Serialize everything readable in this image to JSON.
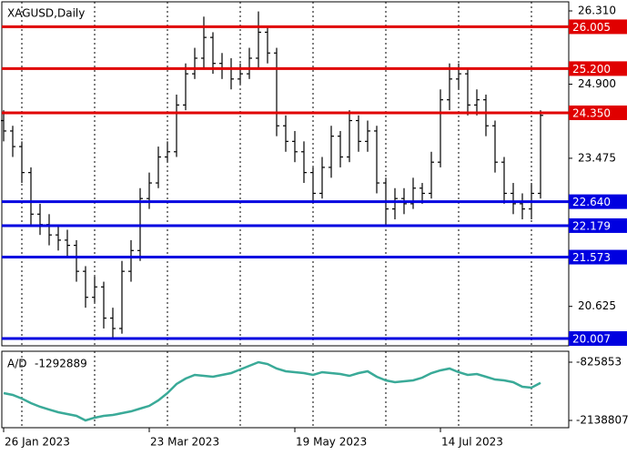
{
  "chart_data": {
    "type": "ohlc",
    "title": "XAGUSD,Daily",
    "bar_color": "#000000",
    "grid": true,
    "categories": [
      "26 Jan 2023",
      null,
      null,
      null,
      null,
      null,
      null,
      null,
      null,
      null,
      null,
      null,
      null,
      null,
      null,
      null,
      "23 Mar 2023",
      null,
      null,
      null,
      null,
      null,
      null,
      null,
      null,
      null,
      null,
      null,
      null,
      null,
      null,
      null,
      "19 May 2023",
      null,
      null,
      null,
      null,
      null,
      null,
      null,
      null,
      null,
      null,
      null,
      null,
      null,
      null,
      null,
      "14 Jul 2023",
      null,
      null,
      null,
      null,
      null,
      null,
      null,
      null,
      null,
      null,
      null
    ],
    "open": [
      24.2,
      24.0,
      23.7,
      23.2,
      22.4,
      22.2,
      22.0,
      21.9,
      21.8,
      21.3,
      20.8,
      21.0,
      20.4,
      20.2,
      21.3,
      21.7,
      22.7,
      23.0,
      23.5,
      23.6,
      24.5,
      25.1,
      25.4,
      25.8,
      25.3,
      25.2,
      25.0,
      25.1,
      25.4,
      25.9,
      25.5,
      24.1,
      23.8,
      23.6,
      23.2,
      22.8,
      23.3,
      23.9,
      23.5,
      24.2,
      23.8,
      24.0,
      23.0,
      22.5,
      22.7,
      22.6,
      22.9,
      22.8,
      23.4,
      24.6,
      25.0,
      25.1,
      24.5,
      24.6,
      24.1,
      23.4,
      22.8,
      22.6,
      22.5,
      22.8
    ],
    "high": [
      24.4,
      24.1,
      23.8,
      23.3,
      22.6,
      22.4,
      22.2,
      22.1,
      21.9,
      21.4,
      21.2,
      21.1,
      20.6,
      21.5,
      21.9,
      22.9,
      23.2,
      23.7,
      23.8,
      24.7,
      25.3,
      25.6,
      26.2,
      25.9,
      25.5,
      25.4,
      25.3,
      25.6,
      26.3,
      26.0,
      25.6,
      24.3,
      24.0,
      23.8,
      23.3,
      23.5,
      24.1,
      24.0,
      24.4,
      24.3,
      24.2,
      24.1,
      23.1,
      22.9,
      22.9,
      23.1,
      23.0,
      23.6,
      24.8,
      25.3,
      25.3,
      25.2,
      24.8,
      24.7,
      24.2,
      23.5,
      23.0,
      22.8,
      23.0,
      24.4
    ],
    "low": [
      23.8,
      23.5,
      23.0,
      22.2,
      22.0,
      21.8,
      21.7,
      21.6,
      21.1,
      20.6,
      20.7,
      20.2,
      20.0,
      20.1,
      21.1,
      21.5,
      22.5,
      22.9,
      23.4,
      23.5,
      24.4,
      25.0,
      25.2,
      25.1,
      25.0,
      24.8,
      24.9,
      25.0,
      25.2,
      25.3,
      23.9,
      23.6,
      23.4,
      23.0,
      22.6,
      22.7,
      23.1,
      23.3,
      23.4,
      23.6,
      23.6,
      22.8,
      22.2,
      22.3,
      22.4,
      22.5,
      22.6,
      22.7,
      23.3,
      24.4,
      24.8,
      24.3,
      24.3,
      23.9,
      23.2,
      22.6,
      22.4,
      22.3,
      22.3,
      22.7
    ],
    "close": [
      24.0,
      23.7,
      23.2,
      22.4,
      22.2,
      22.0,
      21.9,
      21.8,
      21.3,
      20.8,
      21.0,
      20.4,
      20.2,
      21.3,
      21.7,
      22.7,
      23.0,
      23.5,
      23.6,
      24.5,
      25.1,
      25.4,
      25.8,
      25.3,
      25.2,
      25.0,
      25.1,
      25.4,
      25.9,
      25.5,
      24.1,
      23.8,
      23.6,
      23.2,
      22.8,
      23.3,
      23.9,
      23.5,
      24.2,
      23.8,
      24.0,
      23.0,
      22.5,
      22.7,
      22.6,
      22.9,
      22.8,
      23.4,
      24.6,
      25.0,
      25.1,
      24.5,
      24.6,
      24.1,
      23.4,
      22.8,
      22.6,
      22.5,
      22.8,
      24.3
    ],
    "ylim": [
      19.867,
      26.485
    ],
    "yticks": [
      {
        "value": 26.31,
        "label": "26.310"
      },
      {
        "value": 24.9,
        "label": "24.900"
      },
      23.475,
      20.625
    ],
    "levels": [
      {
        "value": 26.005,
        "color": "#e00000"
      },
      {
        "value": 25.2,
        "label": "25.200",
        "color": "#e00000"
      },
      {
        "value": 24.35,
        "label": "24.350",
        "color": "#e00000"
      },
      {
        "value": 22.64,
        "label": "22.640",
        "color": "#0000e0"
      },
      {
        "value": 22.179,
        "color": "#0000e0"
      },
      {
        "value": 21.573,
        "color": "#0000e0"
      },
      {
        "value": 20.007,
        "color": "#0000e0"
      }
    ],
    "indicator": {
      "name": "A/D",
      "color": "#3aaa98",
      "values": [
        -1523000,
        -1564000,
        -1646000,
        -1749000,
        -1831000,
        -1893000,
        -1954000,
        -1995000,
        -2036000,
        -2138807,
        -2077000,
        -2036000,
        -2016000,
        -1975000,
        -1934000,
        -1872000,
        -1811000,
        -1687000,
        -1523000,
        -1318000,
        -1195000,
        -1113000,
        -1134000,
        -1154000,
        -1113000,
        -1072000,
        -990000,
        -908000,
        -825853,
        -867000,
        -969000,
        -1031000,
        -1051000,
        -1072000,
        -1113000,
        -1051000,
        -1072000,
        -1093000,
        -1134000,
        -1072000,
        -1031000,
        -1154000,
        -1236000,
        -1277000,
        -1257000,
        -1236000,
        -1175000,
        -1072000,
        -1010000,
        -969000,
        -1051000,
        -1113000,
        -1093000,
        -1154000,
        -1216000,
        -1236000,
        -1277000,
        -1380000,
        -1400000,
        -1292889
      ],
      "ylim": [
        -2138807,
        -825853
      ],
      "yticks": [
        -2138807,
        -825853
      ]
    }
  }
}
